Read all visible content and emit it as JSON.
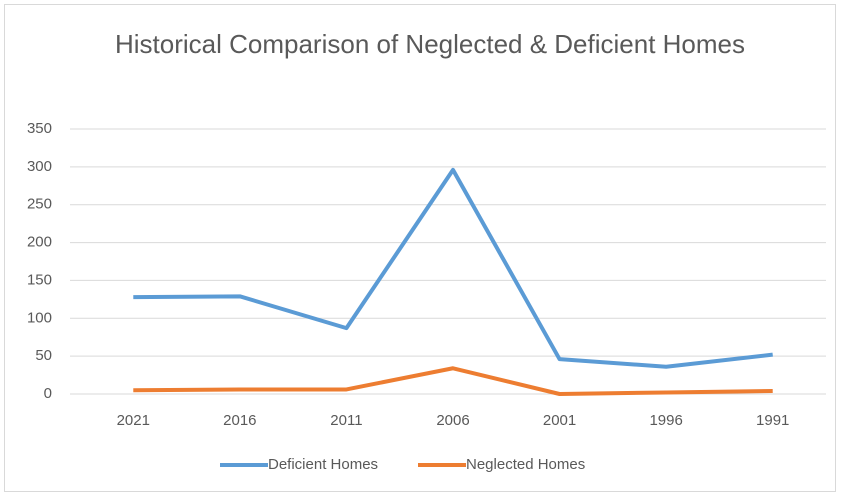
{
  "chart_data": {
    "type": "line",
    "title": "Historical Comparison of Neglected & Deficient Homes",
    "categories": [
      "2021",
      "2016",
      "2011",
      "2006",
      "2001",
      "1996",
      "1991"
    ],
    "series": [
      {
        "name": "Deficient Homes",
        "color": "#5b9bd5",
        "values": [
          128,
          129,
          87,
          296,
          46,
          36,
          52
        ]
      },
      {
        "name": "Neglected Homes",
        "color": "#ed7d31",
        "values": [
          5,
          6,
          6,
          34,
          0,
          2,
          4
        ]
      }
    ],
    "ylim": [
      0,
      350
    ],
    "yticks": [
      0,
      50,
      100,
      150,
      200,
      250,
      300,
      350
    ],
    "grid": true,
    "legend": "bottom"
  }
}
